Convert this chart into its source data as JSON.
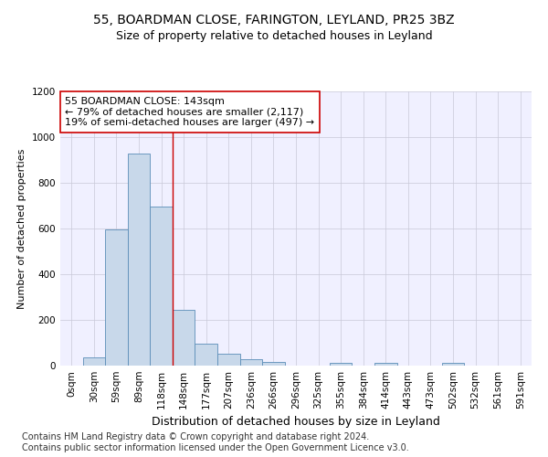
{
  "title1": "55, BOARDMAN CLOSE, FARINGTON, LEYLAND, PR25 3BZ",
  "title2": "Size of property relative to detached houses in Leyland",
  "xlabel": "Distribution of detached houses by size in Leyland",
  "ylabel": "Number of detached properties",
  "bar_color": "#c8d8ea",
  "bar_edge_color": "#5b8db8",
  "categories": [
    "0sqm",
    "30sqm",
    "59sqm",
    "89sqm",
    "118sqm",
    "148sqm",
    "177sqm",
    "207sqm",
    "236sqm",
    "266sqm",
    "296sqm",
    "325sqm",
    "355sqm",
    "384sqm",
    "414sqm",
    "443sqm",
    "473sqm",
    "502sqm",
    "532sqm",
    "561sqm",
    "591sqm"
  ],
  "values": [
    0,
    35,
    595,
    930,
    695,
    245,
    98,
    52,
    28,
    18,
    0,
    0,
    12,
    0,
    12,
    0,
    0,
    12,
    0,
    0,
    0
  ],
  "vline_x": 4.5,
  "vline_color": "#cc0000",
  "annotation_line1": "55 BOARDMAN CLOSE: 143sqm",
  "annotation_line2": "← 79% of detached houses are smaller (2,117)",
  "annotation_line3": "19% of semi-detached houses are larger (497) →",
  "annotation_box_color": "#ffffff",
  "annotation_box_edge": "#cc0000",
  "ylim": [
    0,
    1200
  ],
  "yticks": [
    0,
    200,
    400,
    600,
    800,
    1000,
    1200
  ],
  "footnote": "Contains HM Land Registry data © Crown copyright and database right 2024.\nContains public sector information licensed under the Open Government Licence v3.0.",
  "title1_fontsize": 10,
  "title2_fontsize": 9,
  "xlabel_fontsize": 9,
  "ylabel_fontsize": 8,
  "tick_fontsize": 7.5,
  "annotation_fontsize": 8,
  "footnote_fontsize": 7,
  "bg_color": "#f0f0ff",
  "grid_color": "#c8c8d8"
}
